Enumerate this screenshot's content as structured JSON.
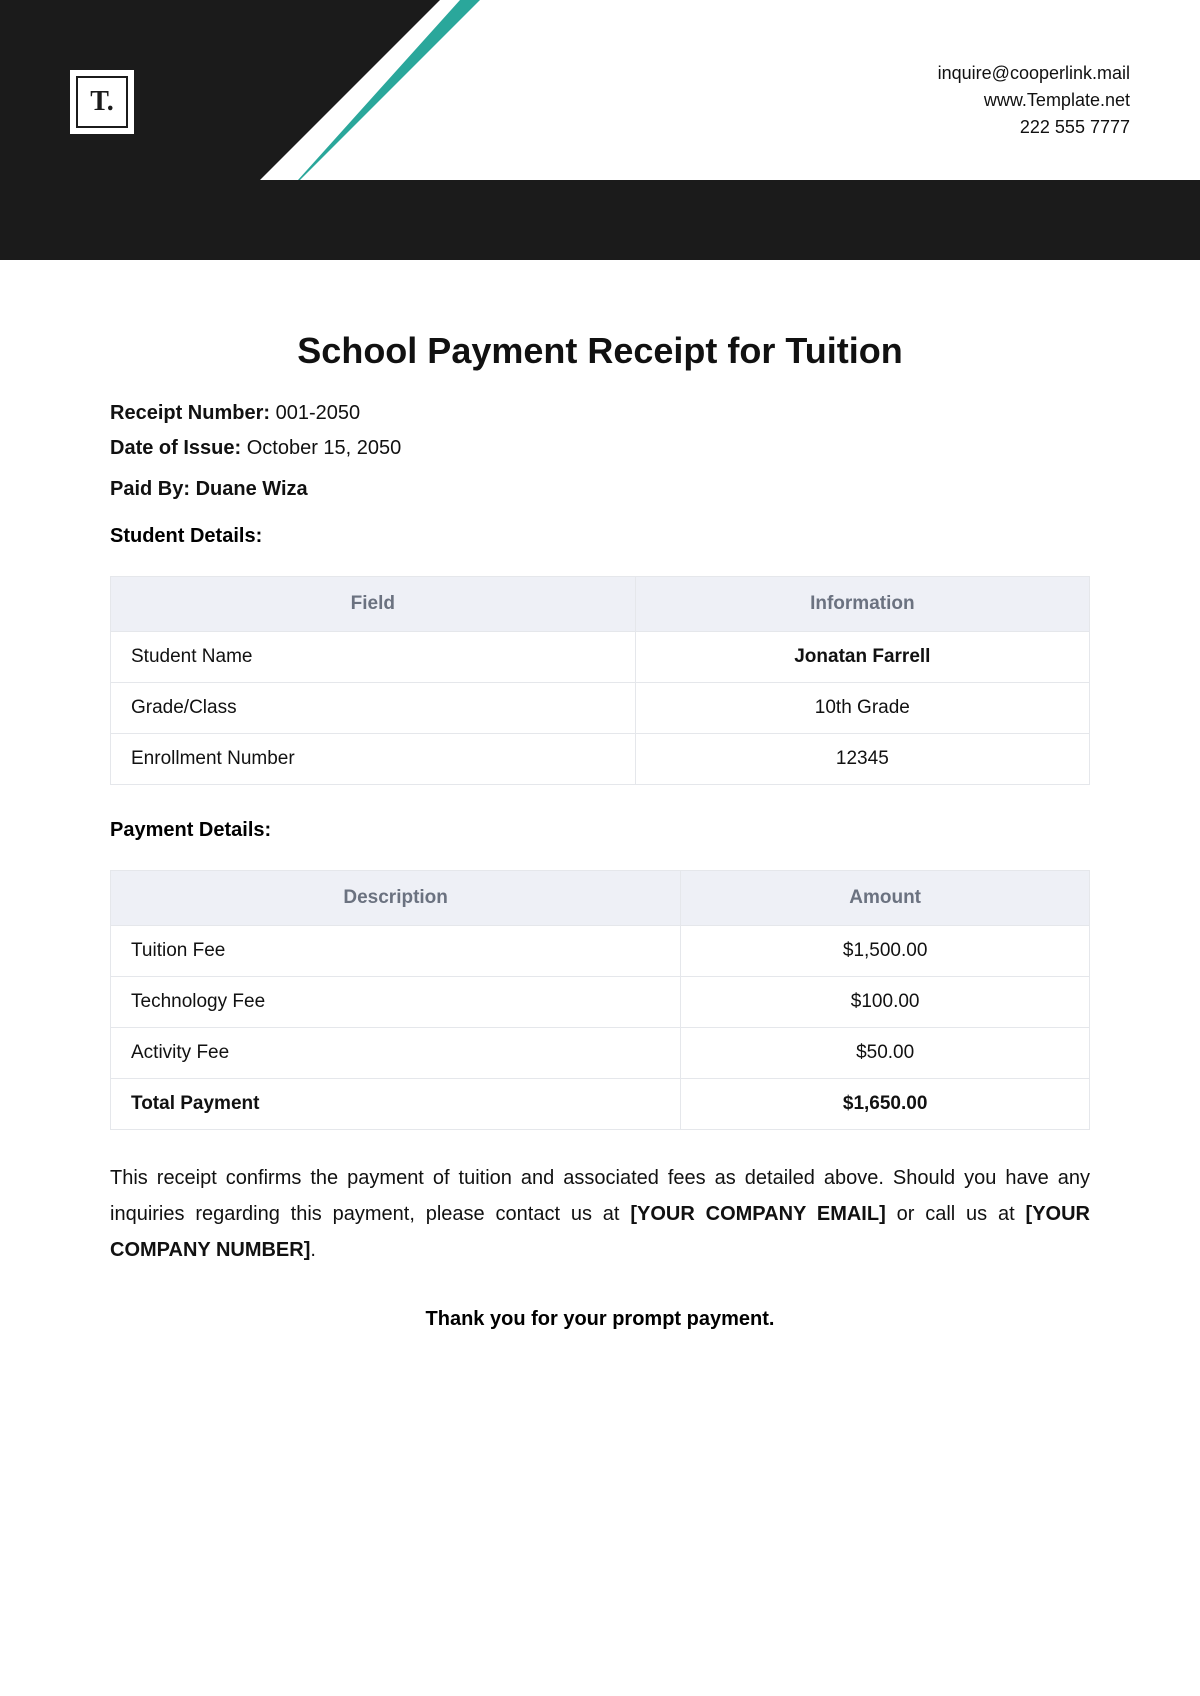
{
  "header": {
    "logo_text": "T.",
    "contact": {
      "email": "inquire@cooperlink.mail",
      "website": "www.Template.net",
      "phone": "222 555 7777"
    },
    "colors": {
      "black": "#1b1b1b",
      "teal": "#2aa79b",
      "white": "#ffffff"
    }
  },
  "title": "School Payment Receipt for Tuition",
  "meta": {
    "receipt_number_label": "Receipt Number:",
    "receipt_number": "001-2050",
    "date_label": "Date of Issue:",
    "date": "October 15, 2050",
    "paid_by_label": "Paid By:",
    "paid_by": "Duane Wiza"
  },
  "student_section_label": "Student Details:",
  "student_table": {
    "headers": {
      "field": "Field",
      "info": "Information"
    },
    "rows": [
      {
        "field": "Student Name",
        "info": "Jonatan Farrell",
        "info_bold": true
      },
      {
        "field": "Grade/Class",
        "info": "10th Grade",
        "info_bold": false
      },
      {
        "field": "Enrollment Number",
        "info": "12345",
        "info_bold": false
      }
    ]
  },
  "payment_section_label": "Payment Details:",
  "payment_table": {
    "headers": {
      "desc": "Description",
      "amount": "Amount"
    },
    "rows": [
      {
        "desc": "Tuition Fee",
        "amount": "$1,500.00",
        "bold": false
      },
      {
        "desc": "Technology Fee",
        "amount": "$100.00",
        "bold": false
      },
      {
        "desc": "Activity Fee",
        "amount": "$50.00",
        "bold": false
      },
      {
        "desc": "Total Payment",
        "amount": "$1,650.00",
        "bold": true
      }
    ]
  },
  "body_text": {
    "part1": "This receipt confirms the payment of tuition and associated fees as detailed above. Should you have any inquiries regarding this payment, please contact us at ",
    "placeholder1": "[YOUR COMPANY EMAIL]",
    "part2": " or call us at ",
    "placeholder2": "[YOUR COMPANY NUMBER]",
    "part3": "."
  },
  "thanks": "Thank you for your prompt payment.",
  "table_style": {
    "header_bg": "#eef0f6",
    "header_color": "#6b7280",
    "border_color": "#e5e7eb",
    "cell_fontsize": 19
  }
}
